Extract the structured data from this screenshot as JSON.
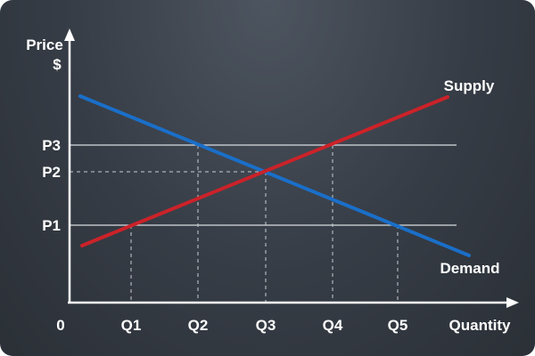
{
  "axes": {
    "y_title_line1": "Price",
    "y_title_line2": "$",
    "x_title": "Quantity",
    "origin": "0"
  },
  "quantity_ticks": [
    "Q1",
    "Q2",
    "Q3",
    "Q4",
    "Q5"
  ],
  "price_ticks": [
    "P1",
    "P2",
    "P3"
  ],
  "curves": {
    "supply": {
      "label": "Supply",
      "color": "#cc2229"
    },
    "demand": {
      "label": "Demand",
      "color": "#1a6fc9"
    }
  },
  "colors": {
    "axis": "#ffffff",
    "gridline": "#d9dde2",
    "guide": "#c8ccd2"
  }
}
